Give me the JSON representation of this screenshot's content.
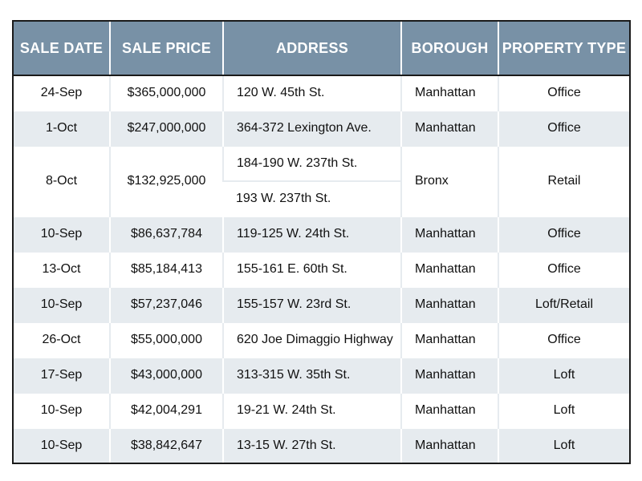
{
  "table": {
    "headers": [
      "SALE DATE",
      "SALE PRICE",
      "ADDRESS",
      "BOROUGH",
      "PROPERTY TYPE"
    ],
    "rows": [
      {
        "date": "24-Sep",
        "price": "$365,000,000",
        "address": "120 W. 45th St.",
        "borough": "Manhattan",
        "type": "Office"
      },
      {
        "date": "1-Oct",
        "price": "$247,000,000",
        "address": "364-372 Lexington Ave.",
        "borough": "Manhattan",
        "type": "Office"
      },
      {
        "date": "8-Oct",
        "price": "$132,925,000",
        "addresses": [
          "184-190 W. 237th St.",
          "193 W. 237th St."
        ],
        "borough": "Bronx",
        "type": "Retail"
      },
      {
        "date": "10-Sep",
        "price": "$86,637,784",
        "address": "119-125 W. 24th St.",
        "borough": "Manhattan",
        "type": "Office"
      },
      {
        "date": "13-Oct",
        "price": "$85,184,413",
        "address": "155-161 E. 60th St.",
        "borough": "Manhattan",
        "type": "Office"
      },
      {
        "date": "10-Sep",
        "price": "$57,237,046",
        "address": "155-157 W. 23rd St.",
        "borough": "Manhattan",
        "type": "Loft/Retail"
      },
      {
        "date": "26-Oct",
        "price": "$55,000,000",
        "address": "620 Joe Dimaggio Highway",
        "borough": "Manhattan",
        "type": "Office"
      },
      {
        "date": "17-Sep",
        "price": "$43,000,000",
        "address": "313-315 W. 35th St.",
        "borough": "Manhattan",
        "type": "Loft"
      },
      {
        "date": "10-Sep",
        "price": "$42,004,291",
        "address": "19-21 W. 24th St.",
        "borough": "Manhattan",
        "type": "Loft"
      },
      {
        "date": "10-Sep",
        "price": "$38,842,647",
        "address": "13-15 W. 27th St.",
        "borough": "Manhattan",
        "type": "Loft"
      }
    ]
  },
  "colors": {
    "header_bg": "#7891a6",
    "stripe_bg": "#e6ebef",
    "border": "#1a1a1a"
  }
}
